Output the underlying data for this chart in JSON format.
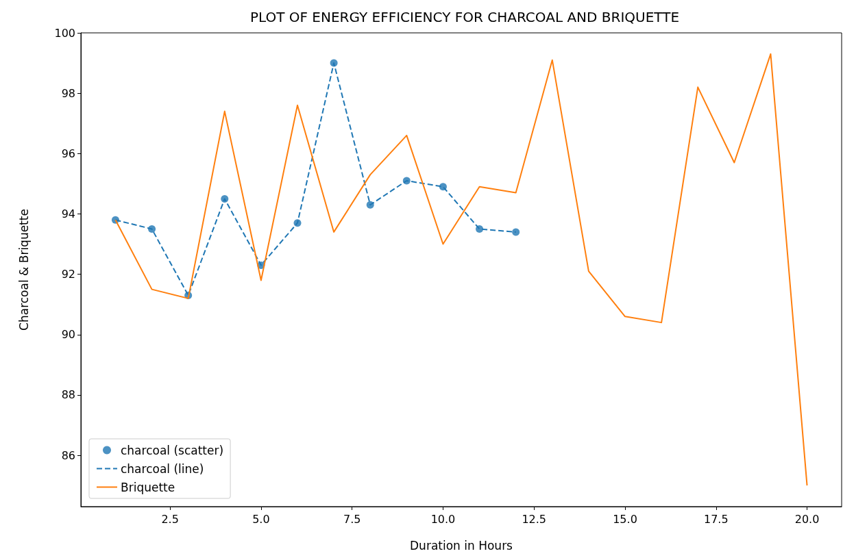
{
  "chart_data": {
    "type": "line",
    "title": "PLOT OF ENERGY EFFICIENCY FOR CHARCOAL AND BRIQUETTE",
    "xlabel": "Duration in Hours",
    "ylabel": "Charcoal & Briquette",
    "xlim": [
      0.05,
      20.95
    ],
    "xticks": [
      {
        "value": 2.5,
        "label": "2.5"
      },
      {
        "value": 5,
        "label": "5.0"
      },
      {
        "value": 7.5,
        "label": "7.5"
      },
      {
        "value": 10,
        "label": "10.0"
      },
      {
        "value": 12.5,
        "label": "12.5"
      },
      {
        "value": 15,
        "label": "15.0"
      },
      {
        "value": 17.5,
        "label": "17.5"
      },
      {
        "value": 20,
        "label": "20.0"
      }
    ],
    "ylim": [
      84.3,
      100
    ],
    "yticks": [
      86,
      88,
      90,
      92,
      94,
      96,
      98,
      100
    ],
    "grid": false,
    "legend": "bottom left",
    "series": [
      {
        "name": "charcoal (scatter)",
        "type": "scatter",
        "color": "#1f77b4",
        "marker": "circle",
        "x": [
          1,
          2,
          3,
          4,
          5,
          6,
          7,
          8,
          9,
          10,
          11,
          12
        ],
        "values": [
          93.8,
          93.5,
          91.3,
          94.5,
          92.3,
          93.7,
          99.0,
          94.3,
          95.1,
          94.9,
          93.5,
          93.4
        ]
      },
      {
        "name": "charcoal (line)",
        "color": "#1f77b4",
        "line_style": "dashed",
        "marker": "none",
        "x": [
          1,
          2,
          3,
          4,
          5,
          6,
          7,
          8,
          9,
          10,
          11,
          12
        ],
        "values": [
          93.8,
          93.5,
          91.3,
          94.5,
          92.3,
          93.7,
          99.0,
          94.3,
          95.1,
          94.9,
          93.5,
          93.4
        ]
      },
      {
        "name": "Briquette",
        "color": "#ff7f0e",
        "line_style": "solid",
        "marker": "none",
        "x": [
          1,
          2,
          3,
          4,
          5,
          6,
          7,
          8,
          9,
          10,
          11,
          12,
          13,
          14,
          15,
          16,
          17,
          18,
          19,
          20
        ],
        "values": [
          93.8,
          91.5,
          91.2,
          97.4,
          91.8,
          97.6,
          93.4,
          95.3,
          96.6,
          93.0,
          94.9,
          94.7,
          99.1,
          92.1,
          90.6,
          90.4,
          98.2,
          95.7,
          99.3,
          85.0
        ]
      }
    ]
  }
}
